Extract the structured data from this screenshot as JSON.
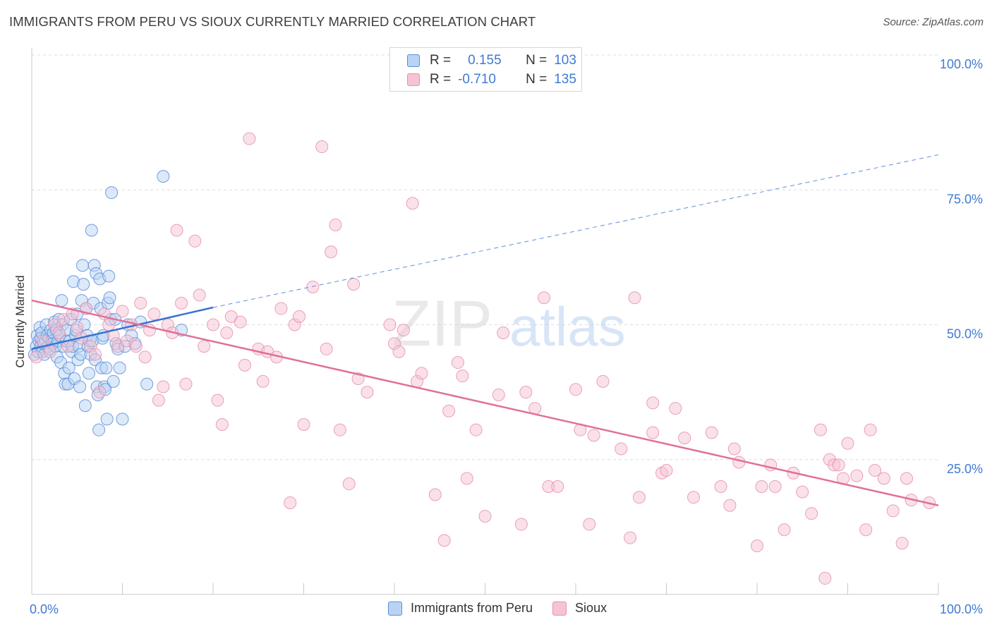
{
  "title": "IMMIGRANTS FROM PERU VS SIOUX CURRENTLY MARRIED CORRELATION CHART",
  "source": "Source: ZipAtlas.com",
  "watermark": {
    "zip": "ZIP",
    "atlas": "atlas"
  },
  "legend": {
    "rows": [
      {
        "r_label": "R =",
        "r_value": "0.155",
        "n_label": "N =",
        "n_value": "103"
      },
      {
        "r_label": "R =",
        "r_value": "-0.710",
        "n_label": "N =",
        "n_value": "135"
      }
    ]
  },
  "series_labels": [
    "Immigrants from Peru",
    "Sioux"
  ],
  "colors": {
    "blue_fill": "#b9d3f3",
    "blue_stroke": "#5b8fd8",
    "blue_line": "#3a72d0",
    "pink_fill": "#f6c3d4",
    "pink_stroke": "#e891ad",
    "pink_line": "#e07099",
    "tick_label": "#3f7ad6"
  },
  "chart_data": {
    "type": "scatter",
    "title": "IMMIGRANTS FROM PERU VS SIOUX CURRENTLY MARRIED CORRELATION CHART",
    "xlabel": "",
    "ylabel": "Currently Married",
    "xlim": [
      0,
      100
    ],
    "ylim": [
      0,
      100
    ],
    "x_tick_labels": [
      "0.0%",
      "100.0%"
    ],
    "y_ticks": [
      25,
      50,
      75,
      100
    ],
    "y_tick_labels": [
      "25.0%",
      "50.0%",
      "75.0%",
      "100.0%"
    ],
    "series": [
      {
        "name": "Immigrants from Peru",
        "r": 0.155,
        "n": 103,
        "trend": {
          "x0": 0,
          "y0": 45.5,
          "x1": 20,
          "y1": 53.2,
          "dash_x1": 100,
          "dash_y1": 81.5
        },
        "points": [
          [
            0.3,
            44.5
          ],
          [
            0.5,
            46
          ],
          [
            0.6,
            48
          ],
          [
            0.7,
            45
          ],
          [
            0.8,
            47
          ],
          [
            0.9,
            49.5
          ],
          [
            1.0,
            46
          ],
          [
            1.0,
            47.5
          ],
          [
            1.1,
            48.5
          ],
          [
            1.2,
            45
          ],
          [
            1.3,
            46.5
          ],
          [
            1.4,
            44.5
          ],
          [
            1.5,
            47
          ],
          [
            1.6,
            50
          ],
          [
            1.7,
            48
          ],
          [
            1.8,
            46
          ],
          [
            1.9,
            47.5
          ],
          [
            2.0,
            45.5
          ],
          [
            2.1,
            49
          ],
          [
            2.2,
            47
          ],
          [
            2.3,
            46.5
          ],
          [
            2.4,
            48.5
          ],
          [
            2.5,
            50.5
          ],
          [
            2.6,
            46
          ],
          [
            2.7,
            49
          ],
          [
            2.8,
            44
          ],
          [
            2.9,
            47
          ],
          [
            3.0,
            51
          ],
          [
            3.1,
            48
          ],
          [
            3.2,
            43
          ],
          [
            3.3,
            54.5
          ],
          [
            3.4,
            50
          ],
          [
            3.5,
            46
          ],
          [
            3.6,
            41
          ],
          [
            3.7,
            39
          ],
          [
            3.8,
            47
          ],
          [
            3.9,
            49
          ],
          [
            4.0,
            39
          ],
          [
            4.1,
            42
          ],
          [
            4.2,
            47
          ],
          [
            4.3,
            51
          ],
          [
            4.4,
            45
          ],
          [
            4.5,
            46
          ],
          [
            4.6,
            58
          ],
          [
            4.7,
            40
          ],
          [
            4.8,
            48
          ],
          [
            4.9,
            49
          ],
          [
            5.0,
            52
          ],
          [
            5.1,
            43.5
          ],
          [
            5.2,
            46
          ],
          [
            5.3,
            38.5
          ],
          [
            5.4,
            44.5
          ],
          [
            5.5,
            54.5
          ],
          [
            5.6,
            61
          ],
          [
            5.7,
            57.5
          ],
          [
            5.8,
            50
          ],
          [
            5.9,
            35
          ],
          [
            6.0,
            53
          ],
          [
            6.1,
            48
          ],
          [
            6.2,
            46
          ],
          [
            6.3,
            41
          ],
          [
            6.4,
            47
          ],
          [
            6.5,
            44.5
          ],
          [
            6.6,
            67.5
          ],
          [
            6.7,
            47
          ],
          [
            6.8,
            54
          ],
          [
            6.9,
            61
          ],
          [
            7.0,
            43.5
          ],
          [
            7.1,
            59.5
          ],
          [
            7.2,
            38.5
          ],
          [
            7.3,
            37
          ],
          [
            7.4,
            30.5
          ],
          [
            7.5,
            58.5
          ],
          [
            7.6,
            53
          ],
          [
            7.7,
            42
          ],
          [
            7.8,
            47.5
          ],
          [
            7.9,
            48
          ],
          [
            8.0,
            38.5
          ],
          [
            8.1,
            38
          ],
          [
            8.2,
            42
          ],
          [
            8.3,
            32.5
          ],
          [
            8.4,
            54
          ],
          [
            8.5,
            59
          ],
          [
            8.6,
            55
          ],
          [
            8.7,
            51
          ],
          [
            8.8,
            74.5
          ],
          [
            9.0,
            39.5
          ],
          [
            9.2,
            51
          ],
          [
            9.3,
            46.5
          ],
          [
            9.5,
            45.5
          ],
          [
            9.7,
            42
          ],
          [
            10.0,
            32.5
          ],
          [
            10.3,
            46
          ],
          [
            10.6,
            50
          ],
          [
            11.0,
            48
          ],
          [
            11.4,
            46.5
          ],
          [
            12.0,
            50.5
          ],
          [
            12.7,
            39
          ],
          [
            14.5,
            77.5
          ],
          [
            16.5,
            49
          ]
        ]
      },
      {
        "name": "Sioux",
        "r": -0.71,
        "n": 135,
        "trend": {
          "x0": 0,
          "y0": 54.5,
          "x1": 100,
          "y1": 16.5
        },
        "points": [
          [
            0.5,
            44
          ],
          [
            1.2,
            47
          ],
          [
            2.0,
            45
          ],
          [
            2.5,
            50
          ],
          [
            3.0,
            48.5
          ],
          [
            3.5,
            51
          ],
          [
            4.0,
            46
          ],
          [
            4.5,
            52
          ],
          [
            5.0,
            49.5
          ],
          [
            5.5,
            47.5
          ],
          [
            6.0,
            53
          ],
          [
            6.5,
            46
          ],
          [
            7.0,
            44.5
          ],
          [
            7.5,
            37.5
          ],
          [
            8.0,
            52
          ],
          [
            8.5,
            50
          ],
          [
            9.0,
            48
          ],
          [
            9.5,
            46
          ],
          [
            10.0,
            52.5
          ],
          [
            10.5,
            47
          ],
          [
            11.0,
            50
          ],
          [
            11.5,
            46
          ],
          [
            12.0,
            54
          ],
          [
            12.5,
            44
          ],
          [
            13.0,
            49
          ],
          [
            13.5,
            52
          ],
          [
            14.0,
            36
          ],
          [
            14.5,
            38.5
          ],
          [
            15.0,
            50
          ],
          [
            15.5,
            48.5
          ],
          [
            16.0,
            67.5
          ],
          [
            16.5,
            54
          ],
          [
            17.0,
            39
          ],
          [
            18.0,
            65.5
          ],
          [
            18.5,
            55.5
          ],
          [
            19.0,
            46
          ],
          [
            20.0,
            50
          ],
          [
            20.5,
            36
          ],
          [
            21.0,
            31.5
          ],
          [
            21.5,
            48.5
          ],
          [
            22.0,
            51.5
          ],
          [
            23.0,
            50.5
          ],
          [
            23.5,
            42.5
          ],
          [
            24.0,
            84.5
          ],
          [
            25.0,
            45.5
          ],
          [
            25.5,
            39.5
          ],
          [
            26.0,
            45
          ],
          [
            27.0,
            44
          ],
          [
            27.5,
            53
          ],
          [
            28.5,
            17
          ],
          [
            29.0,
            50
          ],
          [
            29.5,
            51.5
          ],
          [
            30.0,
            31.5
          ],
          [
            31.0,
            57
          ],
          [
            32.0,
            83
          ],
          [
            32.5,
            45.5
          ],
          [
            33.0,
            63.5
          ],
          [
            33.5,
            68.5
          ],
          [
            34.0,
            30.5
          ],
          [
            35.0,
            20.5
          ],
          [
            35.5,
            57.5
          ],
          [
            36.0,
            40
          ],
          [
            37.0,
            37.5
          ],
          [
            39.5,
            50
          ],
          [
            40.0,
            46.5
          ],
          [
            40.5,
            45
          ],
          [
            41.0,
            49
          ],
          [
            42.0,
            72.5
          ],
          [
            42.5,
            39.5
          ],
          [
            43.0,
            41
          ],
          [
            44.5,
            18.5
          ],
          [
            45.5,
            10
          ],
          [
            46.0,
            34
          ],
          [
            47.0,
            43
          ],
          [
            47.5,
            40.5
          ],
          [
            48.0,
            21.5
          ],
          [
            49.0,
            30.5
          ],
          [
            50.0,
            14.5
          ],
          [
            51.5,
            37
          ],
          [
            52.0,
            48.5
          ],
          [
            54.0,
            13
          ],
          [
            54.5,
            37.5
          ],
          [
            55.5,
            34.5
          ],
          [
            56.5,
            55
          ],
          [
            57.0,
            20
          ],
          [
            58.0,
            20
          ],
          [
            60.0,
            38
          ],
          [
            60.5,
            30.5
          ],
          [
            61.5,
            13
          ],
          [
            62.0,
            29.5
          ],
          [
            63.0,
            39.5
          ],
          [
            65.0,
            27
          ],
          [
            66.0,
            10.5
          ],
          [
            66.5,
            55
          ],
          [
            67.0,
            18
          ],
          [
            68.5,
            30
          ],
          [
            68.5,
            35.5
          ],
          [
            69.5,
            22.5
          ],
          [
            70.0,
            23
          ],
          [
            71.0,
            34.5
          ],
          [
            72.0,
            29
          ],
          [
            73.0,
            18
          ],
          [
            75.0,
            30
          ],
          [
            76.0,
            20
          ],
          [
            77.0,
            16.5
          ],
          [
            77.5,
            27
          ],
          [
            78.0,
            24.5
          ],
          [
            80.0,
            9
          ],
          [
            80.5,
            20
          ],
          [
            81.5,
            24
          ],
          [
            82.0,
            20
          ],
          [
            83.0,
            12
          ],
          [
            84.0,
            22.5
          ],
          [
            85.0,
            19
          ],
          [
            86.0,
            15
          ],
          [
            87.0,
            30.5
          ],
          [
            87.5,
            3
          ],
          [
            88.0,
            25
          ],
          [
            88.5,
            24
          ],
          [
            89.0,
            24
          ],
          [
            89.5,
            21.5
          ],
          [
            90.0,
            28
          ],
          [
            91.0,
            22
          ],
          [
            92.0,
            12
          ],
          [
            92.5,
            30.5
          ],
          [
            93.0,
            23
          ],
          [
            94.0,
            21.5
          ],
          [
            95.0,
            15.5
          ],
          [
            96.0,
            9.5
          ],
          [
            96.5,
            21.5
          ],
          [
            97.0,
            17.5
          ],
          [
            99.0,
            17
          ]
        ]
      }
    ]
  }
}
